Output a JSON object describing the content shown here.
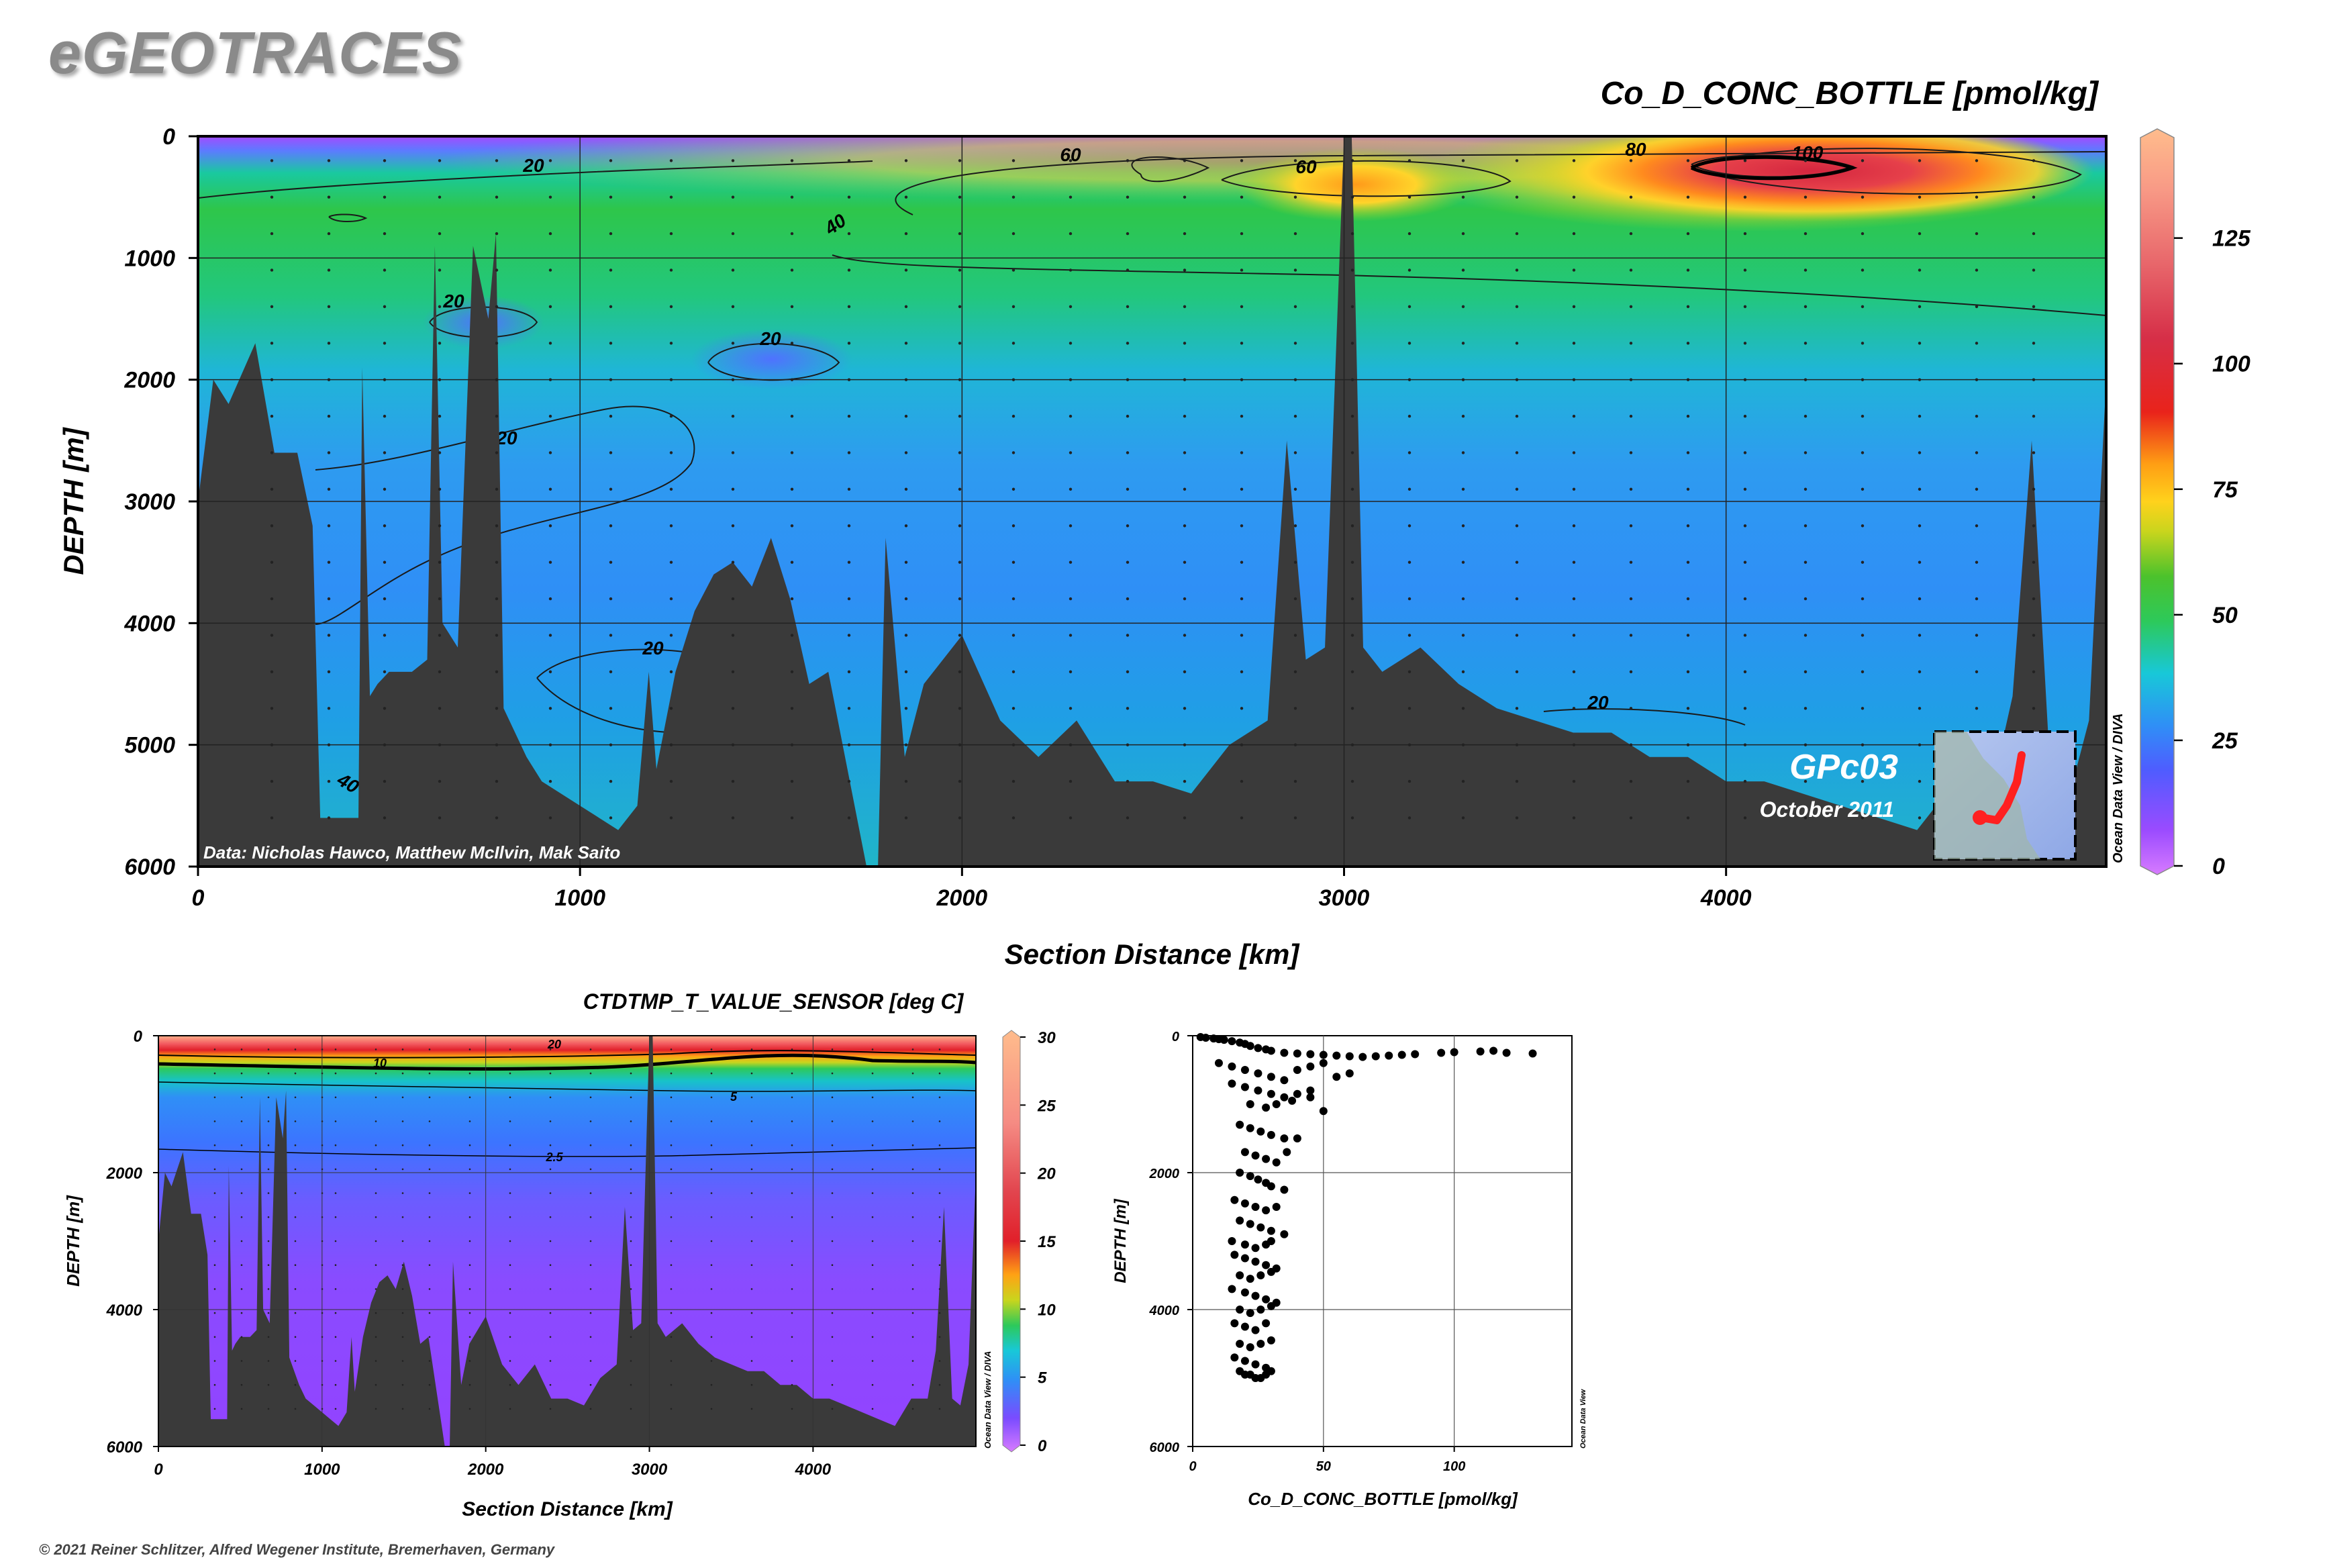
{
  "brand": "eGEOTRACES",
  "copyright": "© 2021 Reiner Schlitzer, Alfred Wegener Institute, Bremerhaven, Germany",
  "main": {
    "title": "Co_D_CONC_BOTTLE [pmol/kg]",
    "xlabel": "Section Distance [km]",
    "ylabel": "DEPTH [m]",
    "x_ticks": [
      "0",
      "1000",
      "2000",
      "3000",
      "4000"
    ],
    "y_ticks": [
      "0",
      "1000",
      "2000",
      "3000",
      "4000",
      "5000",
      "6000"
    ],
    "colorbar_ticks": [
      "0",
      "25",
      "50",
      "75",
      "100",
      "125"
    ],
    "contour_labels": [
      "20",
      "20",
      "20",
      "20",
      "20",
      "20",
      "40",
      "40",
      "60",
      "60",
      "80",
      "100"
    ],
    "data_credit": "Data: Nicholas Hawco, Matthew McIlvin, Mak Saito",
    "cruise": "GPc03",
    "date": "October 2011",
    "odv_credit": "Ocean Data View / DIVA"
  },
  "sub_temp": {
    "title": "CTDTMP_T_VALUE_SENSOR [deg C]",
    "xlabel": "Section Distance [km]",
    "ylabel": "DEPTH [m]",
    "x_ticks": [
      "0",
      "1000",
      "2000",
      "3000",
      "4000"
    ],
    "y_ticks": [
      "0",
      "2000",
      "4000",
      "6000"
    ],
    "colorbar_ticks": [
      "0",
      "5",
      "10",
      "15",
      "20",
      "25",
      "30"
    ],
    "contour_labels": [
      "20",
      "10",
      "5",
      "2.5"
    ],
    "odv_credit": "Ocean Data View / DIVA"
  },
  "sub_scatter": {
    "xlabel": "Co_D_CONC_BOTTLE [pmol/kg]",
    "ylabel": "DEPTH [m]",
    "x_ticks": [
      "0",
      "50",
      "100"
    ],
    "y_ticks": [
      "0",
      "2000",
      "4000",
      "6000"
    ],
    "odv_credit": "Ocean Data View"
  },
  "chart_data": [
    {
      "type": "heatmap",
      "title": "Co_D_CONC_BOTTLE [pmol/kg]",
      "xlabel": "Section Distance [km]",
      "ylabel": "DEPTH [m]",
      "xlim": [
        0,
        5000
      ],
      "ylim": [
        6000,
        0
      ],
      "colorbar_range": [
        0,
        145
      ],
      "contour_levels": [
        20,
        40,
        60,
        80,
        100
      ],
      "max_feature": {
        "x": 4150,
        "y": 300,
        "value": 110
      },
      "bathymetry": {
        "x": [
          0,
          40,
          80,
          150,
          200,
          260,
          300,
          320,
          340,
          380,
          420,
          430,
          450,
          470,
          500,
          520,
          560,
          600,
          620,
          640,
          680,
          720,
          760,
          780,
          800,
          860,
          900,
          950,
          1000,
          1050,
          1100,
          1150,
          1180,
          1200,
          1250,
          1300,
          1350,
          1400,
          1450,
          1500,
          1550,
          1600,
          1650,
          1700,
          1750,
          1780,
          1800,
          1850,
          1900,
          1950,
          2000,
          2100,
          2200,
          2300,
          2400,
          2500,
          2600,
          2700,
          2800,
          2850,
          2900,
          2950,
          3000,
          3020,
          3050,
          3100,
          3150,
          3200,
          3300,
          3400,
          3500,
          3600,
          3700,
          3800,
          3900,
          4000,
          4100,
          4200,
          4300,
          4400,
          4500,
          4600,
          4700,
          4750,
          4800,
          4850,
          4900,
          4950,
          5000
        ],
        "y": [
          3000,
          2000,
          2200,
          1700,
          2600,
          2600,
          3200,
          5600,
          5600,
          5600,
          5600,
          1900,
          4600,
          4500,
          4400,
          4400,
          4400,
          4300,
          900,
          4000,
          4200,
          900,
          1500,
          800,
          4700,
          5100,
          5300,
          5400,
          5500,
          5600,
          5700,
          5500,
          4400,
          5200,
          4400,
          3900,
          3600,
          3500,
          3700,
          3300,
          3800,
          4500,
          4400,
          5200,
          6000,
          6000,
          3300,
          5100,
          4500,
          4300,
          4100,
          4800,
          5100,
          4800,
          5300,
          5300,
          5400,
          5000,
          4800,
          2500,
          4300,
          4200,
          0,
          0,
          4200,
          4400,
          4300,
          4200,
          4500,
          4700,
          4800,
          4900,
          4900,
          5100,
          5100,
          5300,
          5300,
          5400,
          5500,
          5600,
          5700,
          5300,
          5300,
          4600,
          2500,
          5300,
          5400,
          4800,
          2000
        ]
      }
    },
    {
      "type": "heatmap",
      "title": "CTDTMP_T_VALUE_SENSOR [deg C]",
      "xlabel": "Section Distance [km]",
      "ylabel": "DEPTH [m]",
      "xlim": [
        0,
        5000
      ],
      "ylim": [
        6000,
        0
      ],
      "colorbar_range": [
        0,
        30
      ],
      "contour_levels": [
        2.5,
        5,
        10,
        20
      ]
    },
    {
      "type": "scatter",
      "xlabel": "Co_D_CONC_BOTTLE [pmol/kg]",
      "ylabel": "DEPTH [m]",
      "xlim": [
        0,
        145
      ],
      "ylim": [
        6000,
        0
      ],
      "grid": true,
      "x": [
        3,
        5,
        8,
        10,
        12,
        15,
        18,
        20,
        22,
        25,
        28,
        30,
        35,
        40,
        45,
        50,
        55,
        60,
        65,
        70,
        75,
        80,
        85,
        95,
        100,
        110,
        115,
        120,
        130,
        10,
        15,
        20,
        25,
        30,
        35,
        40,
        45,
        50,
        55,
        60,
        15,
        20,
        25,
        30,
        35,
        40,
        45,
        22,
        28,
        32,
        38,
        45,
        50,
        18,
        22,
        26,
        30,
        35,
        40,
        20,
        24,
        28,
        32,
        36,
        18,
        22,
        25,
        28,
        30,
        35,
        16,
        20,
        24,
        28,
        32,
        18,
        22,
        26,
        30,
        35,
        15,
        20,
        24,
        28,
        30,
        16,
        20,
        24,
        28,
        32,
        18,
        22,
        26,
        30,
        15,
        20,
        24,
        28,
        32,
        18,
        22,
        26,
        30,
        16,
        20,
        24,
        28,
        18,
        22,
        26,
        30,
        16,
        20,
        24,
        28,
        18,
        22,
        26,
        30,
        20,
        24,
        28
      ],
      "y": [
        20,
        30,
        40,
        50,
        60,
        80,
        100,
        120,
        150,
        180,
        200,
        220,
        250,
        260,
        270,
        280,
        290,
        300,
        310,
        300,
        290,
        280,
        270,
        250,
        240,
        230,
        220,
        250,
        260,
        400,
        450,
        500,
        550,
        600,
        650,
        500,
        450,
        400,
        600,
        550,
        700,
        750,
        800,
        850,
        900,
        850,
        800,
        1000,
        1050,
        1000,
        950,
        900,
        1100,
        1300,
        1350,
        1400,
        1450,
        1500,
        1500,
        1700,
        1750,
        1800,
        1850,
        1700,
        2000,
        2050,
        2100,
        2150,
        2200,
        2250,
        2400,
        2450,
        2500,
        2550,
        2500,
        2700,
        2750,
        2800,
        2850,
        2900,
        3000,
        3050,
        3100,
        3050,
        3000,
        3200,
        3250,
        3300,
        3350,
        3400,
        3500,
        3550,
        3500,
        3450,
        3700,
        3750,
        3800,
        3850,
        3900,
        4000,
        4050,
        4000,
        3950,
        4200,
        4250,
        4300,
        4200,
        4500,
        4550,
        4500,
        4450,
        4700,
        4750,
        4800,
        4850,
        4900,
        4950,
        5000,
        4900,
        4950,
        5000,
        4950
      ]
    }
  ]
}
